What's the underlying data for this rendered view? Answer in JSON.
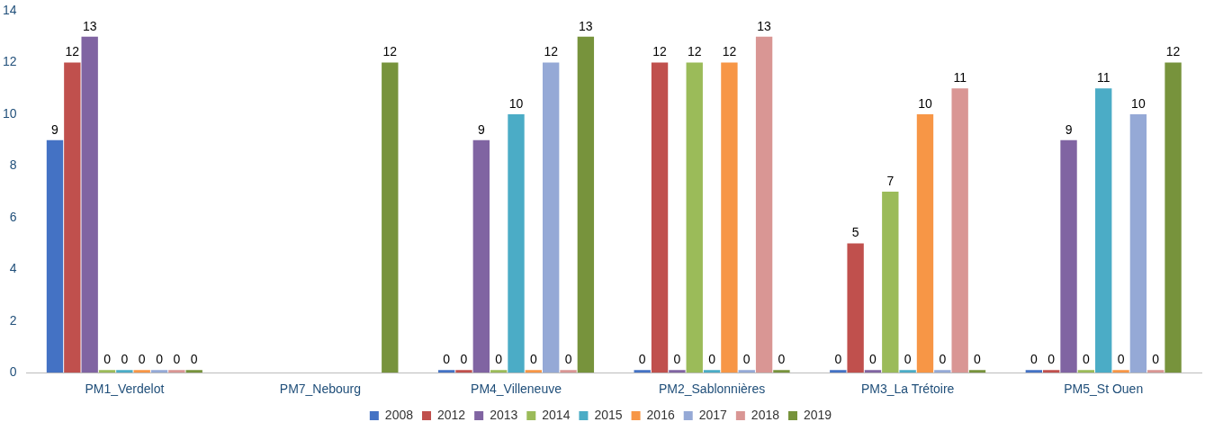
{
  "chart_data": {
    "type": "bar",
    "categories": [
      "PM1_Verdelot",
      "PM7_Nebourg",
      "PM4_Villeneuve",
      "PM2_Sablonnières",
      "PM3_La Trétoire",
      "PM5_St Ouen"
    ],
    "series": [
      {
        "name": "2008",
        "color": "#4472c4",
        "values": [
          9,
          null,
          0,
          0,
          0,
          0
        ]
      },
      {
        "name": "2012",
        "color": "#c0504d",
        "values": [
          12,
          null,
          0,
          12,
          5,
          0
        ]
      },
      {
        "name": "2013",
        "color": "#8064a2",
        "values": [
          13,
          null,
          9,
          0,
          0,
          9
        ]
      },
      {
        "name": "2014",
        "color": "#9bbb59",
        "values": [
          0,
          null,
          0,
          12,
          7,
          0
        ]
      },
      {
        "name": "2015",
        "color": "#4bacc6",
        "values": [
          0,
          null,
          10,
          0,
          0,
          11
        ]
      },
      {
        "name": "2016",
        "color": "#f79646",
        "values": [
          0,
          null,
          0,
          12,
          10,
          0
        ]
      },
      {
        "name": "2017",
        "color": "#95a9d6",
        "values": [
          0,
          null,
          12,
          0,
          0,
          10
        ]
      },
      {
        "name": "2018",
        "color": "#d99694",
        "values": [
          0,
          null,
          0,
          13,
          11,
          0
        ]
      },
      {
        "name": "2019",
        "color": "#77933c",
        "values": [
          0,
          12,
          13,
          0,
          0,
          12
        ]
      }
    ],
    "ylim": [
      0,
      14
    ],
    "yticks": [
      0,
      2,
      4,
      6,
      8,
      10,
      12,
      14
    ],
    "grid": false,
    "legend": "bottom",
    "data_labels": true
  }
}
